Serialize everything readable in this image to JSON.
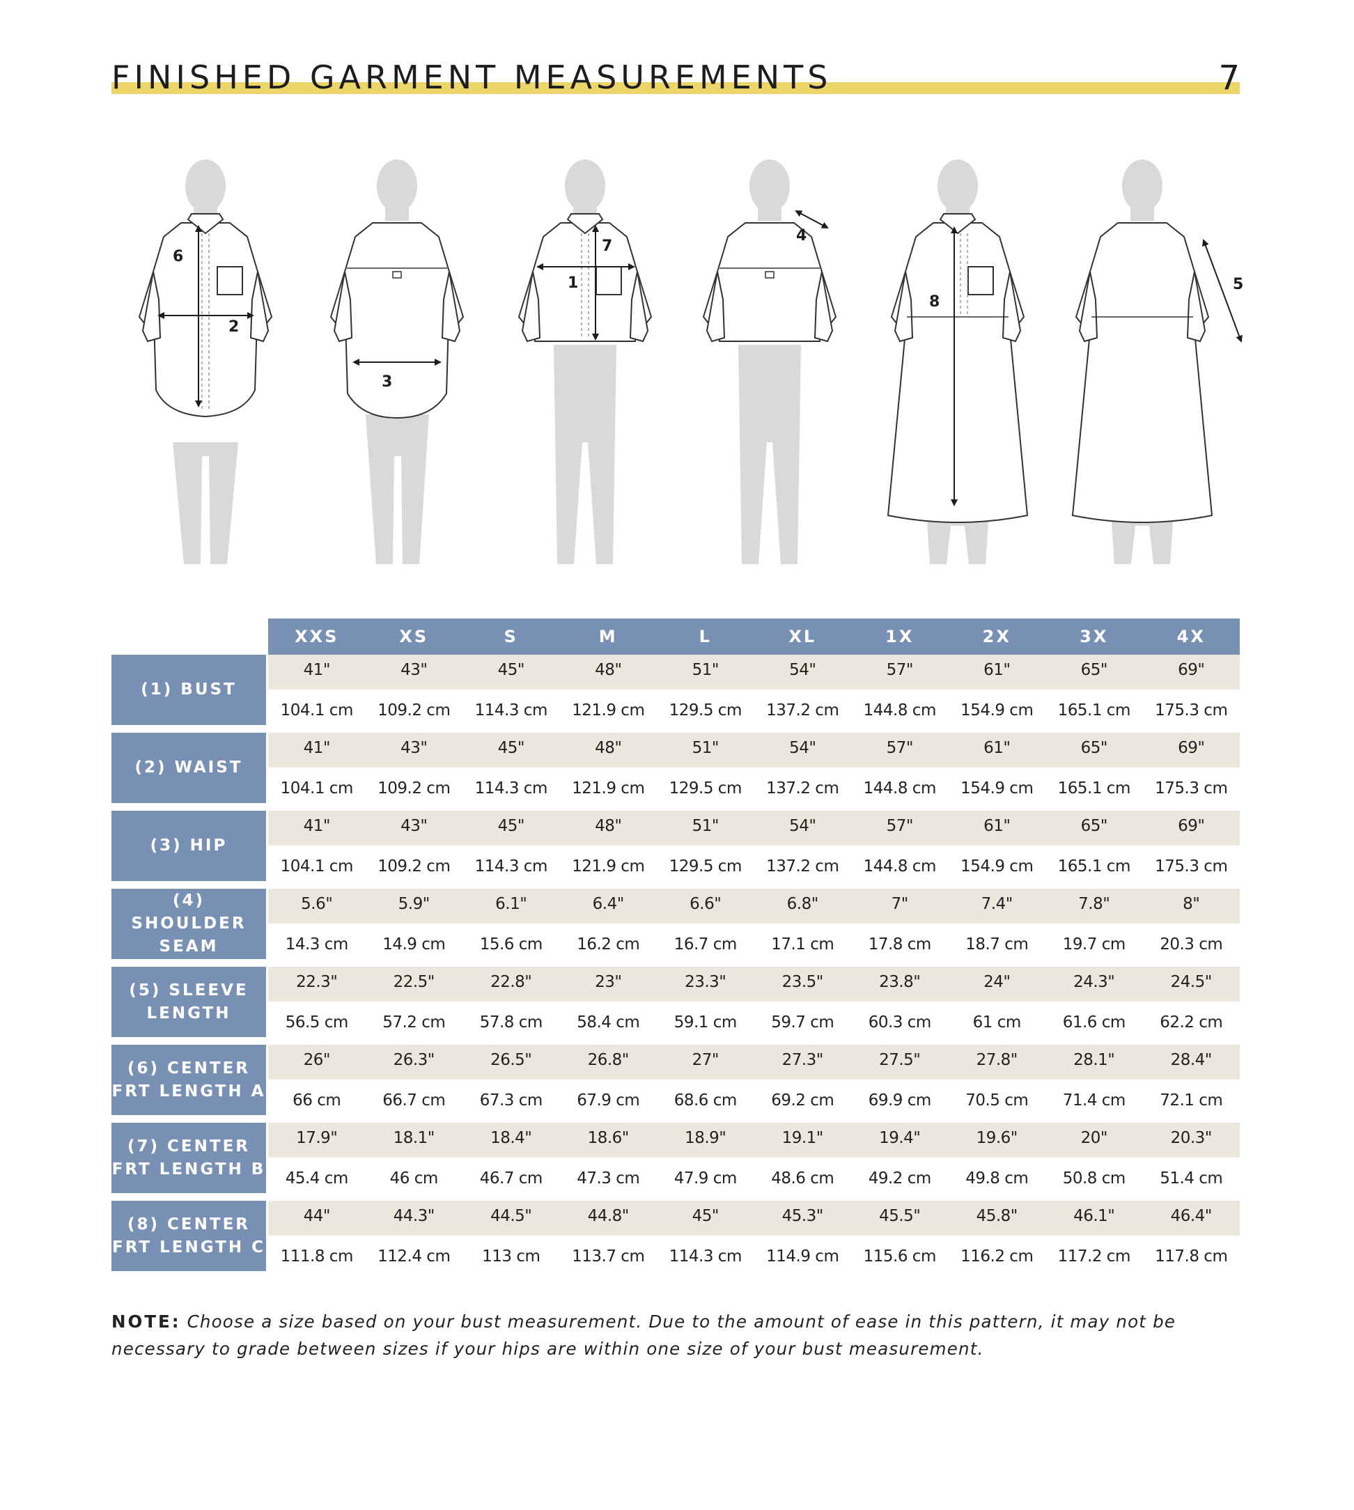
{
  "header": {
    "title": "FINISHED GARMENT MEASUREMENTS",
    "page_number": "7"
  },
  "illustration_callouts": [
    "1",
    "2",
    "3",
    "4",
    "5",
    "6",
    "7",
    "8"
  ],
  "table": {
    "sizes": [
      "XXS",
      "XS",
      "S",
      "M",
      "L",
      "XL",
      "1X",
      "2X",
      "3X",
      "4X"
    ],
    "measurements": [
      {
        "label": "(1) BUST",
        "inches": [
          "41\"",
          "43\"",
          "45\"",
          "48\"",
          "51\"",
          "54\"",
          "57\"",
          "61\"",
          "65\"",
          "69\""
        ],
        "cm": [
          "104.1 cm",
          "109.2 cm",
          "114.3 cm",
          "121.9 cm",
          "129.5 cm",
          "137.2 cm",
          "144.8 cm",
          "154.9 cm",
          "165.1 cm",
          "175.3 cm"
        ]
      },
      {
        "label": "(2) WAIST",
        "inches": [
          "41\"",
          "43\"",
          "45\"",
          "48\"",
          "51\"",
          "54\"",
          "57\"",
          "61\"",
          "65\"",
          "69\""
        ],
        "cm": [
          "104.1 cm",
          "109.2 cm",
          "114.3 cm",
          "121.9 cm",
          "129.5 cm",
          "137.2 cm",
          "144.8 cm",
          "154.9 cm",
          "165.1 cm",
          "175.3 cm"
        ]
      },
      {
        "label": "(3) HIP",
        "inches": [
          "41\"",
          "43\"",
          "45\"",
          "48\"",
          "51\"",
          "54\"",
          "57\"",
          "61\"",
          "65\"",
          "69\""
        ],
        "cm": [
          "104.1 cm",
          "109.2 cm",
          "114.3 cm",
          "121.9 cm",
          "129.5 cm",
          "137.2 cm",
          "144.8 cm",
          "154.9 cm",
          "165.1 cm",
          "175.3 cm"
        ]
      },
      {
        "label": "(4) SHOULDER\nSEAM",
        "inches": [
          "5.6\"",
          "5.9\"",
          "6.1\"",
          "6.4\"",
          "6.6\"",
          "6.8\"",
          "7\"",
          "7.4\"",
          "7.8\"",
          "8\""
        ],
        "cm": [
          "14.3 cm",
          "14.9 cm",
          "15.6 cm",
          "16.2 cm",
          "16.7 cm",
          "17.1 cm",
          "17.8 cm",
          "18.7 cm",
          "19.7 cm",
          "20.3 cm"
        ]
      },
      {
        "label": "(5) SLEEVE\nLENGTH",
        "inches": [
          "22.3\"",
          "22.5\"",
          "22.8\"",
          "23\"",
          "23.3\"",
          "23.5\"",
          "23.8\"",
          "24\"",
          "24.3\"",
          "24.5\""
        ],
        "cm": [
          "56.5 cm",
          "57.2 cm",
          "57.8 cm",
          "58.4 cm",
          "59.1 cm",
          "59.7 cm",
          "60.3 cm",
          "61 cm",
          "61.6 cm",
          "62.2 cm"
        ]
      },
      {
        "label": "(6) CENTER\nFRT LENGTH A",
        "inches": [
          "26\"",
          "26.3\"",
          "26.5\"",
          "26.8\"",
          "27\"",
          "27.3\"",
          "27.5\"",
          "27.8\"",
          "28.1\"",
          "28.4\""
        ],
        "cm": [
          "66 cm",
          "66.7 cm",
          "67.3 cm",
          "67.9 cm",
          "68.6 cm",
          "69.2 cm",
          "69.9 cm",
          "70.5 cm",
          "71.4 cm",
          "72.1 cm"
        ]
      },
      {
        "label": "(7) CENTER\nFRT LENGTH B",
        "inches": [
          "17.9\"",
          "18.1\"",
          "18.4\"",
          "18.6\"",
          "18.9\"",
          "19.1\"",
          "19.4\"",
          "19.6\"",
          "20\"",
          "20.3\""
        ],
        "cm": [
          "45.4 cm",
          "46 cm",
          "46.7 cm",
          "47.3 cm",
          "47.9 cm",
          "48.6 cm",
          "49.2 cm",
          "49.8 cm",
          "50.8 cm",
          "51.4 cm"
        ]
      },
      {
        "label": "(8) CENTER\nFRT LENGTH C",
        "inches": [
          "44\"",
          "44.3\"",
          "44.5\"",
          "44.8\"",
          "45\"",
          "45.3\"",
          "45.5\"",
          "45.8\"",
          "46.1\"",
          "46.4\""
        ],
        "cm": [
          "111.8 cm",
          "112.4 cm",
          "113 cm",
          "113.7 cm",
          "114.3 cm",
          "114.9 cm",
          "115.6 cm",
          "116.2 cm",
          "117.2 cm",
          "117.8 cm"
        ]
      }
    ]
  },
  "note": {
    "label": "NOTE:",
    "text": "Choose a size based on your bust measurement. Due to the amount of ease in this pattern, it may not be necessary to grade between sizes if your hips are within one size of your bust measurement."
  },
  "colors": {
    "header_bar": "#ecd66a",
    "table_header": "#7990b5",
    "inch_row_bg": "#ece7dc",
    "mannequin": "#d9d9d9"
  }
}
